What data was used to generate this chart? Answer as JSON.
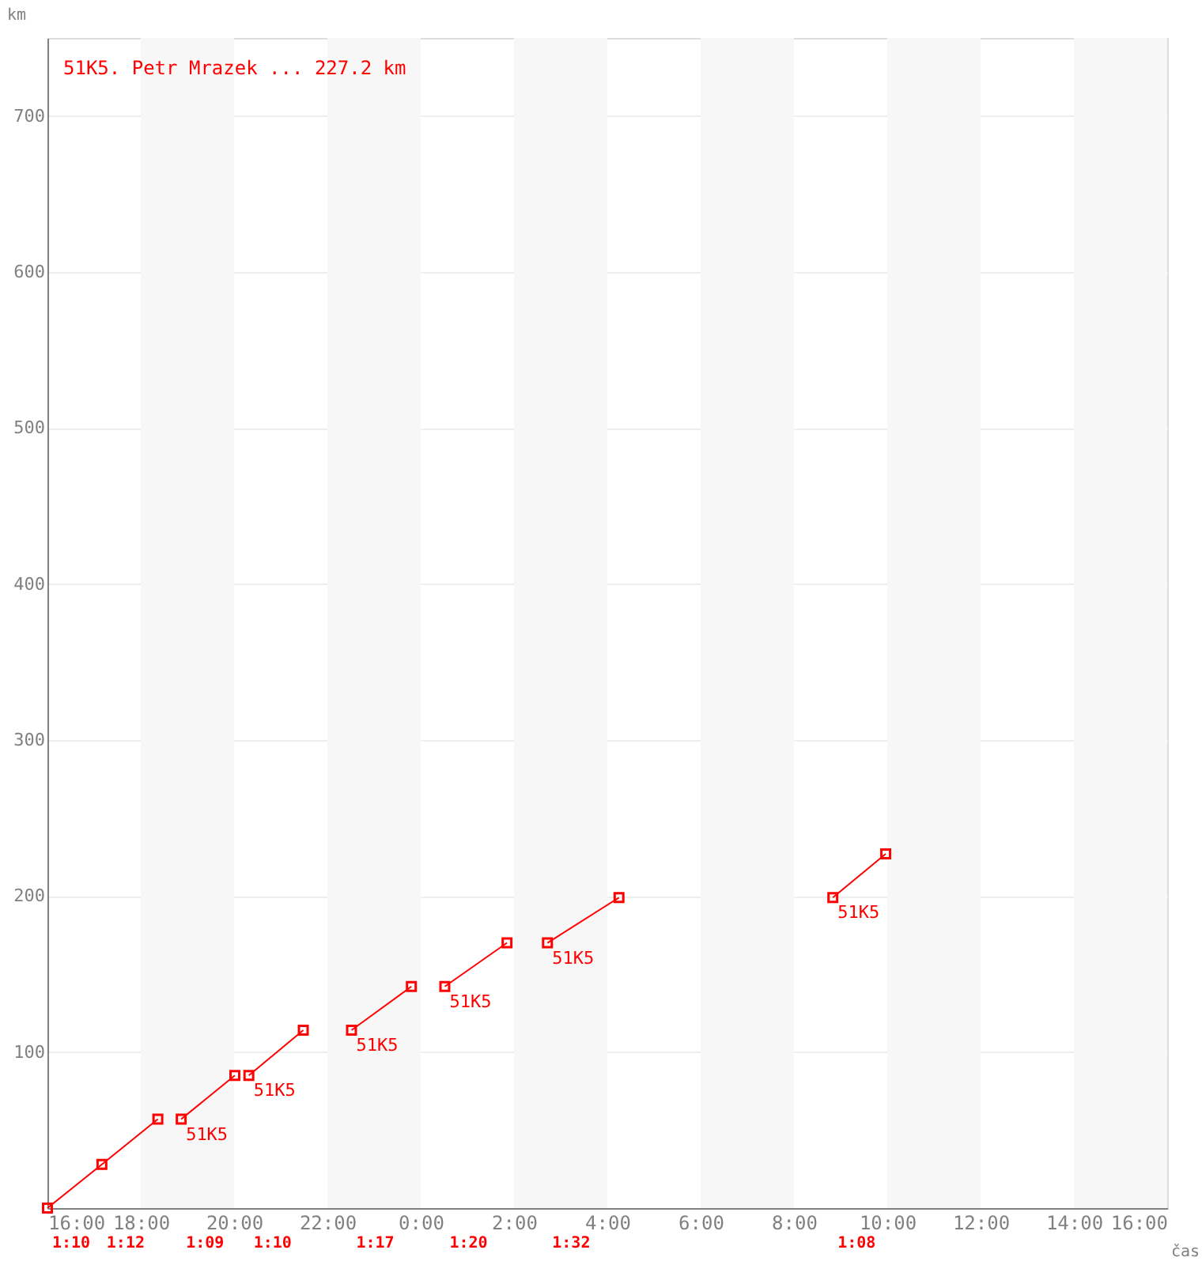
{
  "chart_data": {
    "type": "line",
    "title": "51K5. Petr Mrazek ... 227.2 km",
    "xlabel": "čas",
    "ylabel": "km",
    "xlim": [
      "2000-01-01T16:00",
      "2000-01-02T16:00"
    ],
    "xticks": [
      {
        "value": "2000-01-01T16:00",
        "label": "16:00"
      },
      {
        "value": "2000-01-01T18:00",
        "label": "18:00"
      },
      {
        "value": "2000-01-01T20:00",
        "label": "20:00"
      },
      {
        "value": "2000-01-01T22:00",
        "label": "22:00"
      },
      {
        "value": "2000-01-02T00:00",
        "label": "0:00"
      },
      {
        "value": "2000-01-02T02:00",
        "label": "2:00"
      },
      {
        "value": "2000-01-02T04:00",
        "label": "4:00"
      },
      {
        "value": "2000-01-02T06:00",
        "label": "6:00"
      },
      {
        "value": "2000-01-02T08:00",
        "label": "8:00"
      },
      {
        "value": "2000-01-02T10:00",
        "label": "10:00"
      },
      {
        "value": "2000-01-02T12:00",
        "label": "12:00"
      },
      {
        "value": "2000-01-02T14:00",
        "label": "14:00"
      },
      {
        "value": "2000-01-02T16:00",
        "label": "16:00"
      }
    ],
    "ylim": [
      0,
      750
    ],
    "yticks": [
      100,
      200,
      300,
      400,
      500,
      600,
      700
    ],
    "grid": "y",
    "marker": "square",
    "line_style": "solid",
    "series": [
      {
        "name": "51K5",
        "color": "#ff0000",
        "x": [
          "2000-01-01T16:00",
          "2000-01-01T17:10",
          "2000-01-01T18:22",
          null,
          "2000-01-01T18:52",
          "2000-01-01T20:01",
          null,
          "2000-01-01T20:19",
          "2000-01-01T21:29",
          null,
          "2000-01-01T22:31",
          "2000-01-01T23:48",
          null,
          "2000-01-02T00:31",
          "2000-01-02T01:51",
          null,
          "2000-01-02T02:43",
          "2000-01-02T04:15",
          null,
          "2000-01-02T08:50",
          "2000-01-02T09:58"
        ],
        "values": [
          0,
          28,
          57,
          null,
          57,
          85,
          null,
          85,
          114,
          null,
          114,
          142,
          null,
          142,
          170,
          null,
          170,
          199,
          null,
          199,
          227
        ]
      }
    ],
    "bands": [
      {
        "axis": "x",
        "from": "2000-01-01T18:00",
        "to": "2000-01-01T20:00",
        "color": "#f7f7f7"
      },
      {
        "axis": "x",
        "from": "2000-01-01T22:00",
        "to": "2000-01-02T00:00",
        "color": "#f7f7f7"
      },
      {
        "axis": "x",
        "from": "2000-01-02T02:00",
        "to": "2000-01-02T04:00",
        "color": "#f7f7f7"
      },
      {
        "axis": "x",
        "from": "2000-01-02T06:00",
        "to": "2000-01-02T08:00",
        "color": "#f7f7f7"
      },
      {
        "axis": "x",
        "from": "2000-01-02T10:00",
        "to": "2000-01-02T12:00",
        "color": "#f7f7f7"
      },
      {
        "axis": "x",
        "from": "2000-01-02T14:00",
        "to": "2000-01-02T16:00",
        "color": "#f7f7f7"
      }
    ],
    "annotations": [
      "1:10",
      "1:12",
      "1:09",
      "1:10",
      "1:17",
      "1:20",
      "1:32",
      "1:08"
    ]
  }
}
